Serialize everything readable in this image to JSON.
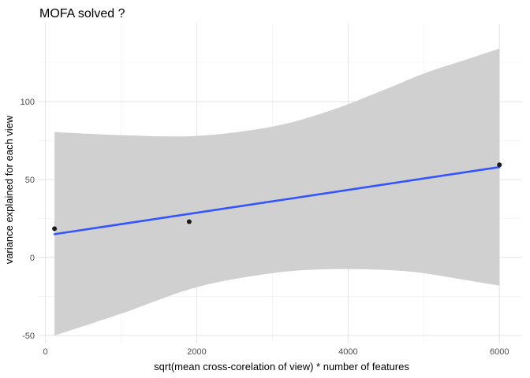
{
  "chart_data": {
    "type": "scatter",
    "title": "MOFA solved ?",
    "xlabel": "sqrt(mean cross-corelation of view) * number of features",
    "ylabel": "variance explained for each view",
    "xlim": [
      -100,
      6300
    ],
    "ylim": [
      -55,
      150
    ],
    "x_ticks": [
      0,
      2000,
      4000,
      6000
    ],
    "y_ticks": [
      -50,
      0,
      50,
      100
    ],
    "x_minor_ticks": [
      1000,
      3000,
      5000
    ],
    "y_minor_ticks": [
      -25,
      25,
      75,
      125
    ],
    "grid": true,
    "points": [
      {
        "x": 120,
        "y": 18.5
      },
      {
        "x": 1900,
        "y": 23
      },
      {
        "x": 6000,
        "y": 59.5
      }
    ],
    "fit_line": {
      "x": [
        120,
        6000
      ],
      "y": [
        15,
        58
      ]
    },
    "confidence_band": {
      "x": [
        120,
        1000,
        2000,
        3000,
        3750,
        4500,
        5000,
        5500,
        6000
      ],
      "upper": [
        80.5,
        78.5,
        78,
        84,
        94,
        108,
        118,
        126,
        134
      ],
      "lower": [
        -50,
        -36,
        -19,
        -10,
        -7.5,
        -8,
        -10,
        -14,
        -18
      ]
    },
    "colors": {
      "point": "#1a1a1a",
      "line": "#3355ff",
      "band": "#d0d0d0",
      "grid_major": "#e6e6e6",
      "grid_minor": "#f2f2f2"
    }
  }
}
